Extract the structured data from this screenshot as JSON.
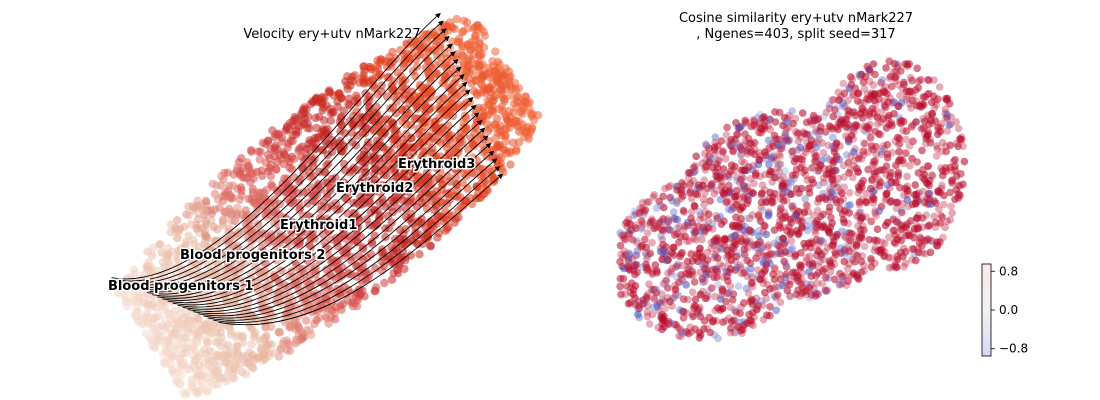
{
  "chart_data": [
    {
      "type": "scatter",
      "title": "Velocity ery+utv nMark227",
      "xlabel": "",
      "ylabel": "",
      "grid": false,
      "annotations": [
        "Blood progenitors 1",
        "Blood progenitors 2",
        "Erythroid1",
        "Erythroid2",
        "Erythroid3"
      ],
      "colormap": [
        "#f6dccf",
        "#e8b9a3",
        "#d9534f",
        "#c0201f",
        "#e6451f",
        "#f0663a"
      ],
      "overlay": "velocity streamlines with arrows",
      "points_shown": "dense point cloud (thousands of cells), streamlines flowing from Blood progenitors 1 toward Erythroid3"
    },
    {
      "type": "scatter",
      "title": "Cosine similarity ery+utv nMark227\n, Ngenes=403, split seed=317",
      "xlabel": "",
      "ylabel": "",
      "grid": false,
      "colorbar": {
        "ticks": [
          "0.8",
          "0.0",
          "−0.8"
        ],
        "range": [
          -0.95,
          0.95
        ],
        "colors": [
          "#b40426",
          "#f7f7f7",
          "#3b4cc0"
        ]
      },
      "dominant_value": "mostly high positive cosine similarity (red), sparse low values (blue) in the lower-left lobe"
    }
  ]
}
